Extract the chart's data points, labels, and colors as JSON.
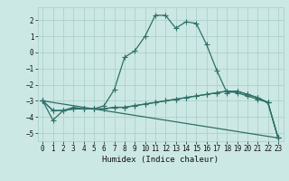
{
  "title": "",
  "xlabel": "Humidex (Indice chaleur)",
  "background_color": "#cce8e4",
  "line_color": "#2d7068",
  "grid_color": "#a8ccc8",
  "xlim": [
    -0.5,
    23.5
  ],
  "ylim": [
    -5.5,
    2.8
  ],
  "xticks": [
    0,
    1,
    2,
    3,
    4,
    5,
    6,
    7,
    8,
    9,
    10,
    11,
    12,
    13,
    14,
    15,
    16,
    17,
    18,
    19,
    20,
    21,
    22,
    23
  ],
  "yticks": [
    -5,
    -4,
    -3,
    -2,
    -1,
    0,
    1,
    2
  ],
  "lines": [
    {
      "x": [
        0,
        1,
        2,
        3,
        4,
        5,
        6,
        7,
        8,
        9,
        10,
        11,
        12,
        13,
        14,
        15,
        16,
        17,
        18,
        19,
        20,
        21,
        22,
        23
      ],
      "y": [
        -3.0,
        -4.2,
        -3.6,
        -3.4,
        -3.5,
        -3.5,
        -3.3,
        -2.3,
        -0.3,
        0.1,
        1.0,
        2.3,
        2.3,
        1.5,
        1.9,
        1.8,
        0.5,
        -1.1,
        -2.5,
        -2.4,
        -2.6,
        -2.8,
        -3.1,
        -5.3
      ]
    },
    {
      "x": [
        0,
        1,
        2,
        3,
        4,
        5,
        6,
        7,
        8,
        9,
        10,
        11,
        12,
        13,
        14,
        15,
        16,
        17,
        18,
        19,
        20,
        21,
        22,
        23
      ],
      "y": [
        -3.0,
        -3.6,
        -3.6,
        -3.5,
        -3.5,
        -3.5,
        -3.5,
        -3.4,
        -3.4,
        -3.3,
        -3.2,
        -3.1,
        -3.0,
        -2.9,
        -2.8,
        -2.7,
        -2.6,
        -2.5,
        -2.4,
        -2.4,
        -2.6,
        -2.8,
        -3.1,
        -5.3
      ]
    },
    {
      "x": [
        0,
        1,
        2,
        3,
        4,
        5,
        6,
        7,
        8,
        9,
        10,
        11,
        12,
        13,
        14,
        15,
        16,
        17,
        18,
        19,
        20,
        21,
        22,
        23
      ],
      "y": [
        -3.0,
        -3.6,
        -3.6,
        -3.5,
        -3.5,
        -3.5,
        -3.5,
        -3.4,
        -3.4,
        -3.3,
        -3.2,
        -3.1,
        -3.0,
        -2.9,
        -2.8,
        -2.7,
        -2.6,
        -2.5,
        -2.4,
        -2.5,
        -2.7,
        -2.9,
        -3.1,
        -5.3
      ]
    },
    {
      "x": [
        0,
        23
      ],
      "y": [
        -3.0,
        -5.3
      ]
    }
  ],
  "marker": "+",
  "markersize": 4,
  "linewidth": 0.9,
  "tick_fontsize": 5.5,
  "xlabel_fontsize": 6.5
}
